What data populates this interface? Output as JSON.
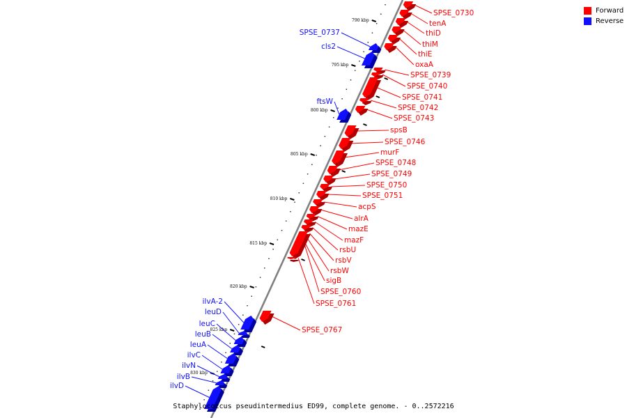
{
  "colors": {
    "forward": "#ff0000",
    "reverse": "#1010ff",
    "forward_dark": "#b00000",
    "reverse_dark": "#0000a0",
    "backbone": "#808080"
  },
  "legend": {
    "forward_label": "Forward",
    "reverse_label": "Reverse"
  },
  "caption": "Staphylococcus pseudintermedius ED99, complete genome. - 0..2572216",
  "ticks": [
    "790 kbp",
    "795 kbp",
    "800 kbp",
    "805 kbp",
    "810 kbp",
    "815 kbp",
    "820 kbp",
    "825 kbp",
    "830 kbp"
  ],
  "forward_genes": [
    "SPSE_0730",
    "tenA",
    "thiD",
    "thiM",
    "thiE",
    "oxaA",
    "SPSE_0739",
    "SPSE_0740",
    "SPSE_0741",
    "SPSE_0742",
    "SPSE_0743",
    "spsB",
    "SPSE_0746",
    "murF",
    "SPSE_0748",
    "SPSE_0749",
    "SPSE_0750",
    "SPSE_0751",
    "acpS",
    "alrA",
    "mazE",
    "mazF",
    "rsbU",
    "rsbV",
    "rsbW",
    "sigB",
    "SPSE_0760",
    "SPSE_0761",
    "SPSE_0767"
  ],
  "reverse_genes": [
    "SPSE_0737",
    "cls2",
    "ftsW",
    "ilvA-2",
    "leuD",
    "leuC",
    "leuB",
    "leuA",
    "ilvC",
    "ilvN",
    "ilvB",
    "ilvD"
  ]
}
